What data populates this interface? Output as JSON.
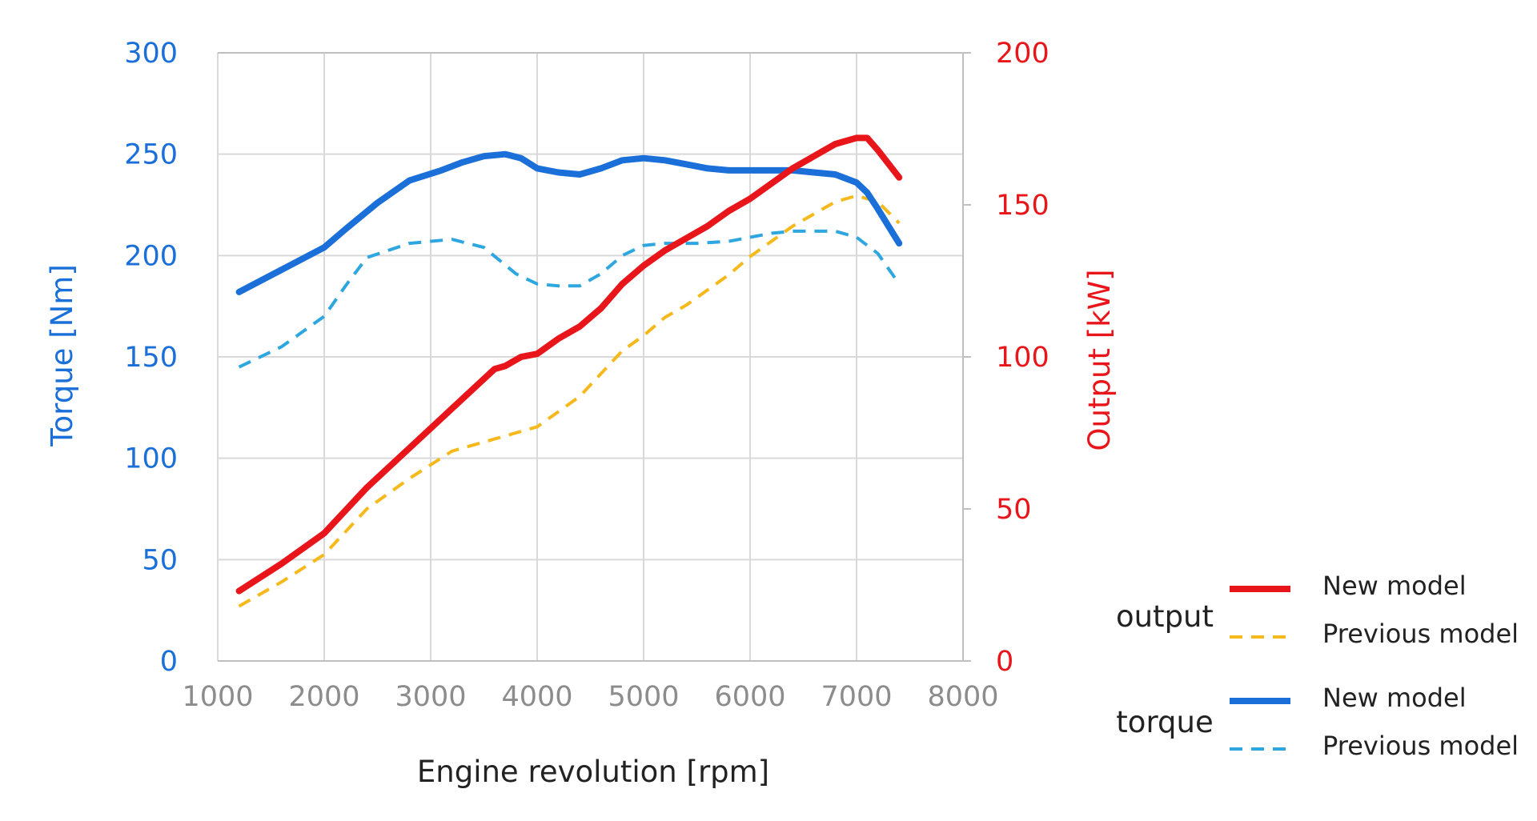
{
  "chart_data": {
    "type": "line",
    "xlabel": "Engine revolution [rpm]",
    "ylabel_left": "Torque [Nm]",
    "ylabel_right": "Output [kW]",
    "xlim": [
      1000,
      8000
    ],
    "ylim_left": [
      0,
      300
    ],
    "ylim_right": [
      0,
      200
    ],
    "x_ticks": [
      "1000",
      "2000",
      "3000",
      "4000",
      "5000",
      "6000",
      "7000",
      "8000"
    ],
    "y_ticks_left": [
      "0",
      "50",
      "100",
      "150",
      "200",
      "250",
      "300"
    ],
    "y_ticks_right": [
      "0",
      "50",
      "100",
      "150",
      "200"
    ],
    "grid": true,
    "legend_position": "bottom-right",
    "colors": {
      "left_axis": "#1a6fd8",
      "right_axis": "#e8161b",
      "tick_x": "#8c8c8c",
      "grid": "#d9d9d9",
      "axis_title_x": "#222222"
    },
    "legend": [
      {
        "group": "output",
        "items": [
          {
            "label": "New model",
            "series": 0
          },
          {
            "label": "Previous model",
            "series": 1
          }
        ]
      },
      {
        "group": "torque",
        "items": [
          {
            "label": "New model",
            "series": 2
          },
          {
            "label": "Previous model",
            "series": 3
          }
        ]
      }
    ],
    "series": [
      {
        "axis": "right",
        "color": "#e8161b",
        "style": "solid",
        "x": [
          1200,
          1600,
          2000,
          2400,
          2800,
          3200,
          3600,
          3700,
          3850,
          4000,
          4200,
          4400,
          4600,
          4800,
          5000,
          5200,
          5400,
          5600,
          5800,
          6000,
          6200,
          6400,
          6600,
          6800,
          7000,
          7100,
          7200,
          7400
        ],
        "values": [
          23,
          32,
          42,
          57,
          70,
          83,
          96,
          97,
          100,
          101,
          106,
          110,
          116,
          124,
          130,
          135,
          139,
          143,
          148,
          152,
          157,
          162,
          166,
          170,
          172,
          172,
          168,
          159
        ]
      },
      {
        "axis": "right",
        "color": "#f5b91c",
        "style": "dashed",
        "x": [
          1200,
          1600,
          2000,
          2400,
          2800,
          3200,
          3600,
          4000,
          4400,
          4800,
          5000,
          5200,
          5400,
          5600,
          5800,
          6000,
          6200,
          6400,
          6600,
          6800,
          7000,
          7200,
          7400
        ],
        "values": [
          18,
          26,
          35,
          50,
          60,
          69,
          73,
          77,
          87,
          102,
          107,
          113,
          117,
          122,
          127,
          133,
          138,
          143,
          147,
          151,
          153,
          151,
          144
        ]
      },
      {
        "axis": "left",
        "color": "#1a6fd8",
        "style": "solid",
        "x": [
          1200,
          1600,
          2000,
          2200,
          2500,
          2800,
          3100,
          3300,
          3500,
          3700,
          3850,
          4000,
          4200,
          4400,
          4600,
          4800,
          5000,
          5200,
          5400,
          5600,
          5800,
          6000,
          6200,
          6400,
          6600,
          6800,
          7000,
          7100,
          7200,
          7400
        ],
        "values": [
          182,
          193,
          204,
          213,
          226,
          237,
          242,
          246,
          249,
          250,
          248,
          243,
          241,
          240,
          243,
          247,
          248,
          247,
          245,
          243,
          242,
          242,
          242,
          242,
          241,
          240,
          236,
          231,
          223,
          206
        ]
      },
      {
        "axis": "left",
        "color": "#2ea6e0",
        "style": "dashed",
        "x": [
          1200,
          1600,
          2000,
          2200,
          2400,
          2800,
          3200,
          3500,
          3800,
          4000,
          4200,
          4400,
          4600,
          4800,
          5000,
          5200,
          5500,
          5800,
          6000,
          6200,
          6400,
          6600,
          6800,
          7000,
          7200,
          7400
        ],
        "values": [
          145,
          155,
          170,
          185,
          199,
          206,
          208,
          204,
          191,
          186,
          185,
          185,
          191,
          200,
          205,
          206,
          206,
          207,
          209,
          211,
          212,
          212,
          212,
          209,
          201,
          186
        ]
      }
    ]
  }
}
